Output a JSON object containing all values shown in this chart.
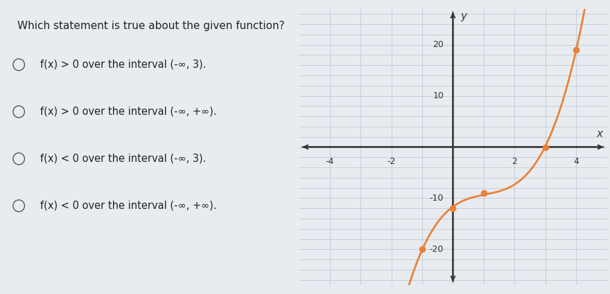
{
  "title": "Which statement is true about the given function?",
  "options": [
    "f(x) > 0 over the interval (-∞, 3).",
    "f(x) > 0 over the interval (-∞, +∞).",
    "f(x) < 0 over the interval (-∞, 3).",
    "f(x) < 0 over the interval (-∞, +∞)."
  ],
  "curve_color": "#E8823A",
  "dot_color": "#E8823A",
  "dot_points": [
    [
      -1,
      -20
    ],
    [
      0,
      -12
    ],
    [
      1,
      -9
    ],
    [
      3,
      0
    ],
    [
      4,
      19
    ]
  ],
  "xlim": [
    -5.0,
    5.0
  ],
  "ylim": [
    -27,
    27
  ],
  "xtick_vals": [
    -4,
    -2,
    2,
    4
  ],
  "ytick_vals": [
    -20,
    -10,
    10,
    20
  ],
  "xlabel": "x",
  "ylabel": "y",
  "graph_bg": "#f8f4ee",
  "page_bg": "#e8ecf0",
  "text_area_bg": "#e8ecf0",
  "grid_color": "#c5cdd8",
  "axis_color": "#333333",
  "text_color": "#222222",
  "title_fontsize": 11,
  "option_fontsize": 10.5,
  "radio_color": "#555555"
}
